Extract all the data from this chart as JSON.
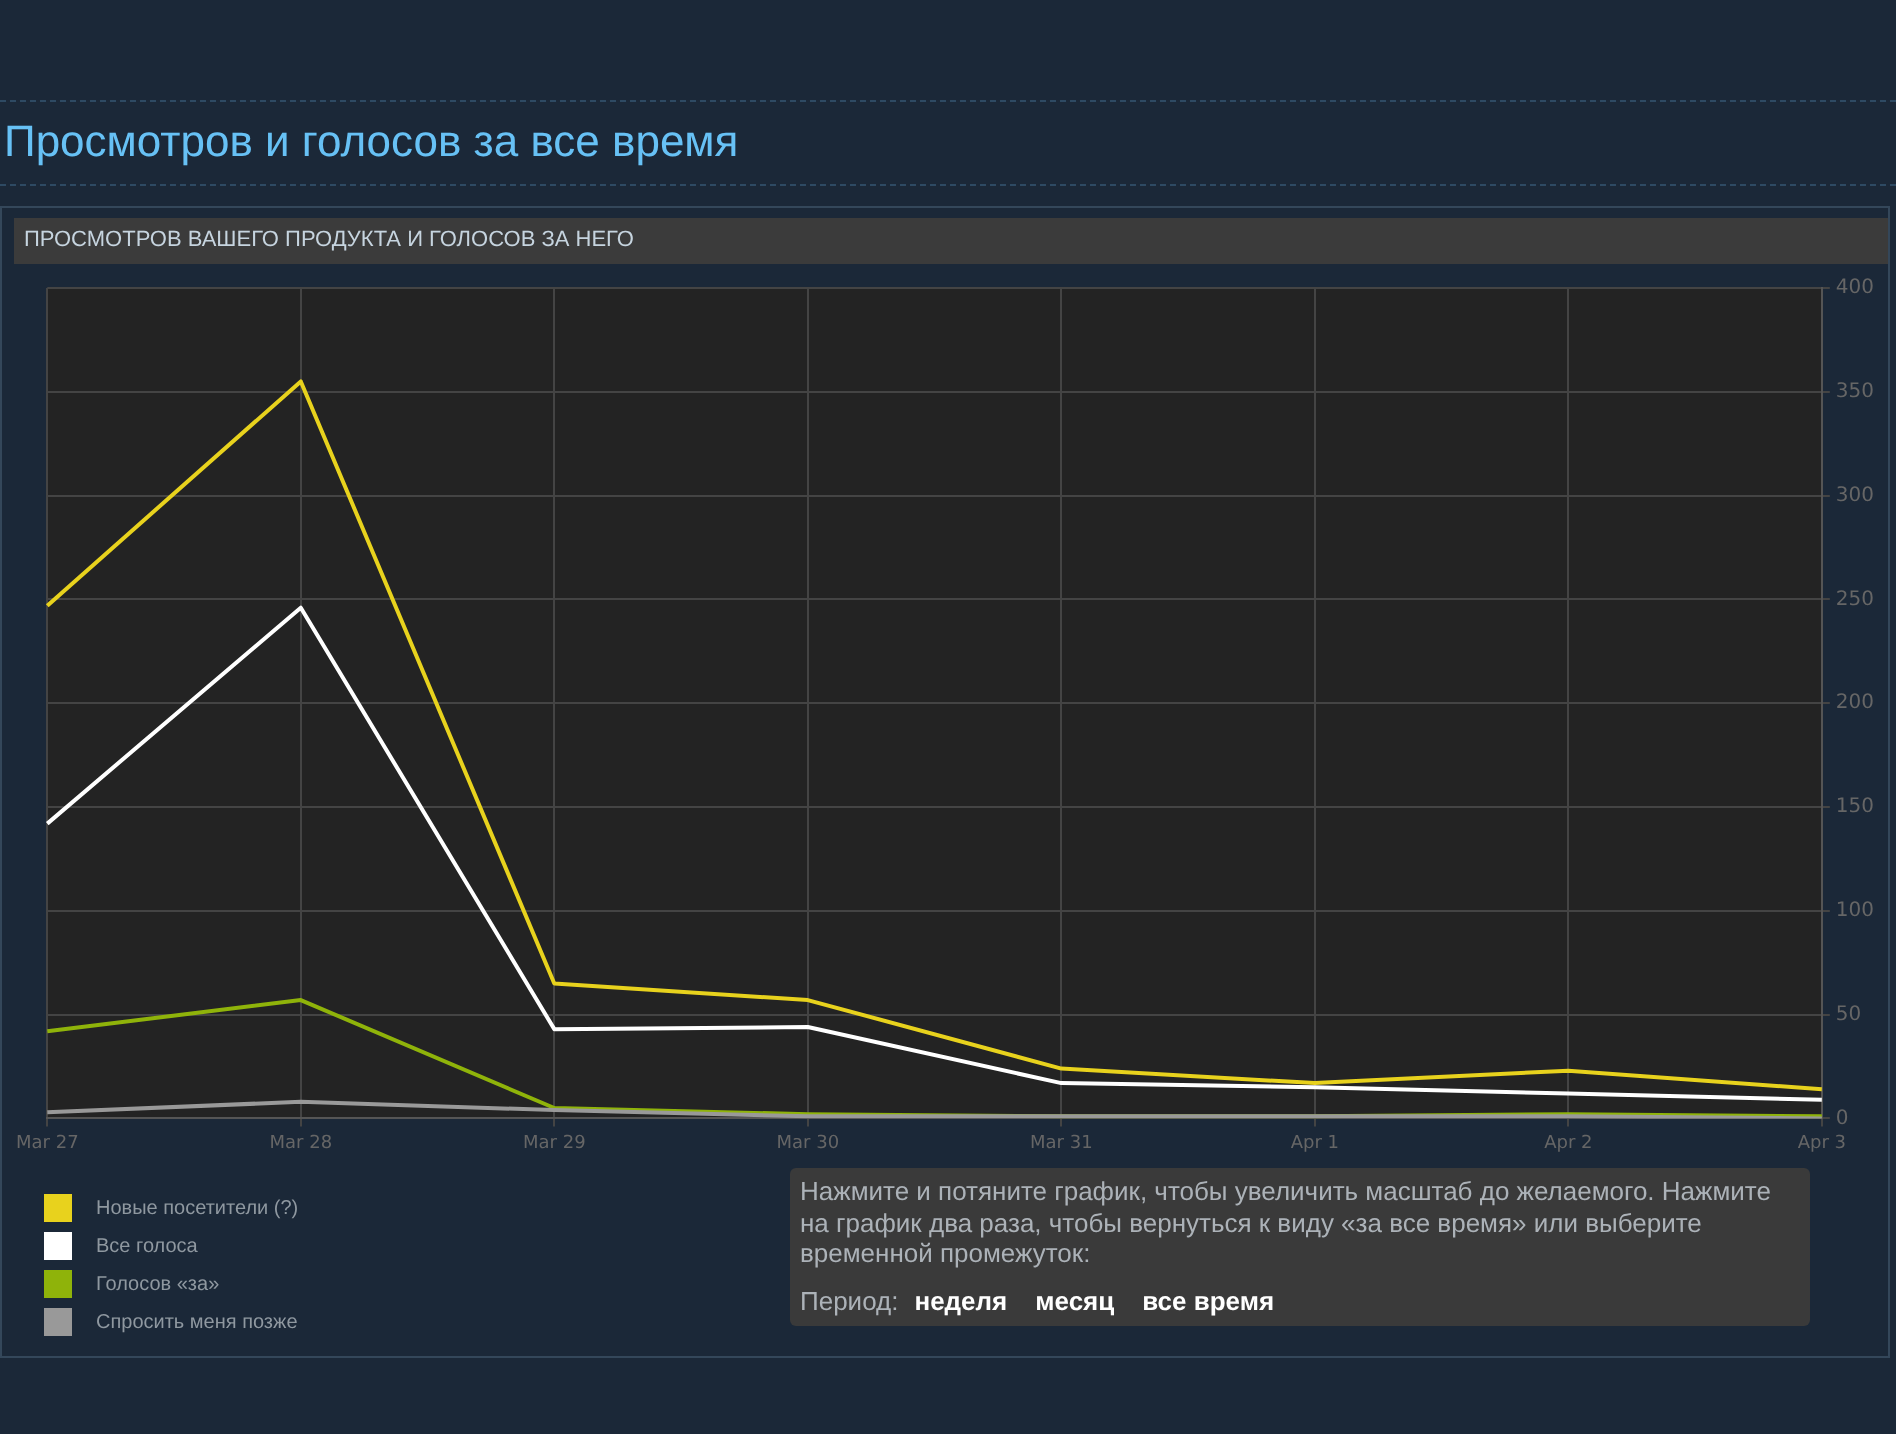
{
  "chart_data": {
    "type": "line",
    "title": "Просмотров и голосов за все время",
    "subtitle": "ПРОСМОТРОВ ВАШЕГО ПРОДУКТА И ГОЛОСОВ ЗА НЕГО",
    "categories": [
      "Mar 27",
      "Mar 28",
      "Mar 29",
      "Mar 30",
      "Mar 31",
      "Apr 1",
      "Apr 2",
      "Apr 3"
    ],
    "series": [
      {
        "name": "Новые посетители (?)",
        "color": "#e8d21d",
        "values": [
          247,
          355,
          65,
          57,
          24,
          17,
          23,
          14
        ]
      },
      {
        "name": "Все голоса",
        "color": "#ffffff",
        "values": [
          142,
          246,
          43,
          44,
          17,
          15,
          12,
          9
        ]
      },
      {
        "name": "Голосов «за»",
        "color": "#8fb30a",
        "values": [
          42,
          57,
          5,
          2,
          1,
          1,
          2,
          1
        ]
      },
      {
        "name": "Спросить меня позже",
        "color": "#999999",
        "values": [
          3,
          8,
          4,
          1,
          1,
          1,
          1,
          0
        ]
      }
    ],
    "ylim": [
      0,
      400
    ],
    "yticks": [
      0,
      50,
      100,
      150,
      200,
      250,
      300,
      350,
      400
    ],
    "grid": true,
    "legend": "bottom left",
    "marker": "none",
    "annotations": [
      "Нажмите и потяните график, чтобы увеличить масштаб до желаемого. Нажмите на график два раза, чтобы вернуться к виду «за все время» или выберите временной промежуток:",
      "Период:",
      "неделя",
      "месяц",
      "все время"
    ]
  }
}
